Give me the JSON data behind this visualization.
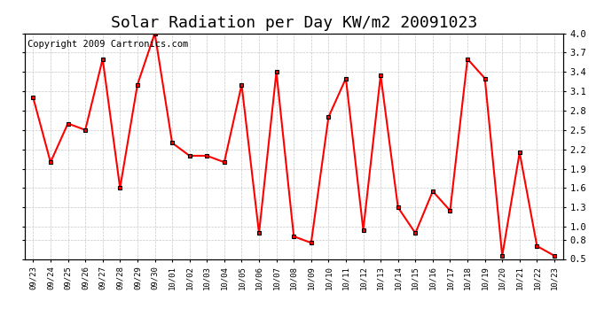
{
  "title": "Solar Radiation per Day KW/m2 20091023",
  "copyright_text": "Copyright 2009 Cartronics.com",
  "dates": [
    "09/23",
    "09/24",
    "09/25",
    "09/26",
    "09/27",
    "09/28",
    "09/29",
    "09/30",
    "10/01",
    "10/02",
    "10/03",
    "10/04",
    "10/05",
    "10/06",
    "10/07",
    "10/08",
    "10/09",
    "10/10",
    "10/11",
    "10/12",
    "10/13",
    "10/14",
    "10/15",
    "10/16",
    "10/17",
    "10/18",
    "10/19",
    "10/20",
    "10/21",
    "10/22",
    "10/23"
  ],
  "values": [
    3.0,
    2.0,
    2.6,
    2.5,
    3.6,
    1.6,
    3.2,
    4.0,
    2.3,
    2.1,
    2.1,
    2.0,
    3.2,
    0.9,
    3.4,
    0.85,
    0.75,
    2.7,
    3.3,
    0.95,
    3.35,
    1.3,
    0.9,
    1.55,
    1.25,
    3.6,
    3.3,
    0.55,
    2.15,
    0.7,
    0.55
  ],
  "line_color": "#ff0000",
  "marker_color": "#000000",
  "marker_face_color": "#ff0000",
  "background_color": "#ffffff",
  "plot_background_color": "#ffffff",
  "grid_color": "#c8c8c8",
  "title_fontsize": 13,
  "copyright_fontsize": 7.5,
  "ylim": [
    0.5,
    4.0
  ],
  "yticks": [
    0.5,
    0.8,
    1.0,
    1.3,
    1.6,
    1.9,
    2.2,
    2.5,
    2.8,
    3.1,
    3.4,
    3.7,
    4.0
  ]
}
